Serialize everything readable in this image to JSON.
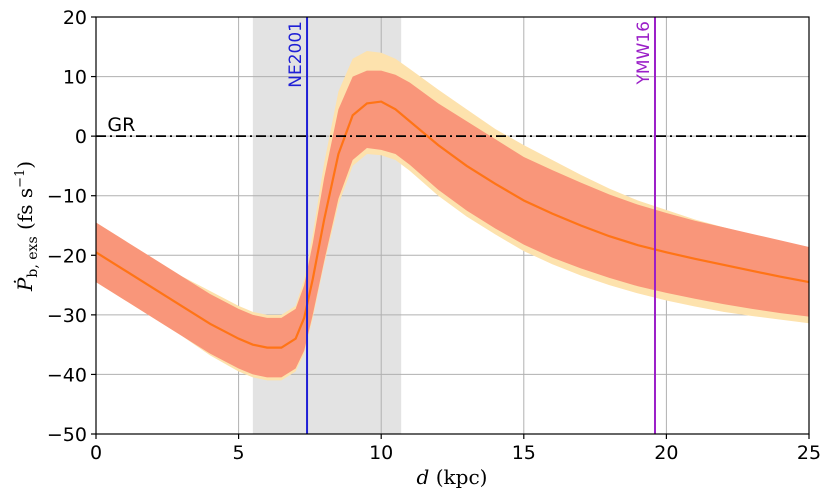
{
  "chart_data": {
    "type": "line",
    "xlabel": "d (kpc)",
    "ylabel": "Ṗb,exs (fs s⁻¹)",
    "xlim": [
      0,
      25
    ],
    "ylim": [
      -50,
      20
    ],
    "xticks": [
      0,
      5,
      10,
      15,
      20,
      25
    ],
    "yticks": [
      -50,
      -40,
      -30,
      -20,
      -10,
      0,
      10,
      20
    ],
    "xtick_labels": [
      "0",
      "5",
      "10",
      "15",
      "20",
      "25"
    ],
    "ytick_labels": [
      "−50",
      "−40",
      "−30",
      "−20",
      "−10",
      "0",
      "10",
      "20"
    ],
    "grid": true,
    "shaded_region": {
      "x": [
        5.5,
        10.7
      ],
      "color": "#e3e3e3"
    },
    "reference_line": {
      "label": "GR",
      "y": 0,
      "style": "dash-dot",
      "color": "#000000"
    },
    "vertical_lines": [
      {
        "label": "NE2001",
        "x": 7.4,
        "color": "#1f1fd6"
      },
      {
        "label": "YMW16",
        "x": 19.6,
        "color": "#9b1fc8"
      }
    ],
    "x": [
      0,
      1,
      2,
      3,
      4,
      5,
      5.5,
      6,
      6.5,
      7,
      7.3,
      7.6,
      8,
      8.5,
      9,
      9.5,
      10,
      10.5,
      11,
      12,
      13,
      14,
      15,
      16,
      17,
      18,
      19,
      20,
      21,
      22,
      23,
      24,
      25
    ],
    "series": [
      {
        "values": [
          -19.5,
          -22.5,
          -25.5,
          -28.5,
          -31.5,
          -34,
          -35,
          -35.5,
          -35.5,
          -34,
          -30.5,
          -24,
          -14,
          -3,
          3.5,
          5.5,
          5.8,
          4.5,
          2.5,
          -1.5,
          -5,
          -8,
          -10.8,
          -13,
          -15,
          -16.8,
          -18.3,
          -19.5,
          -20.6,
          -21.6,
          -22.6,
          -23.6,
          -24.5
        ],
        "band_inner_lower": [
          -24.5,
          -27.5,
          -30.5,
          -33.5,
          -36.5,
          -39,
          -40,
          -40.5,
          -40.5,
          -39,
          -36,
          -30,
          -21,
          -10.5,
          -4,
          -2,
          -2.3,
          -3,
          -4.8,
          -9,
          -12.5,
          -15.5,
          -18.2,
          -20.4,
          -22.2,
          -23.8,
          -25.2,
          -26.3,
          -27.3,
          -28.2,
          -29,
          -29.7,
          -30.3
        ],
        "band_inner_upper": [
          -14.5,
          -17.5,
          -20.5,
          -23.5,
          -26.5,
          -29,
          -30,
          -30.5,
          -30.5,
          -29,
          -25,
          -18,
          -7,
          4.5,
          10,
          11,
          11,
          10.3,
          9,
          5.5,
          2.5,
          -0.5,
          -3.5,
          -5.7,
          -7.8,
          -9.8,
          -11.5,
          -12.9,
          -14.2,
          -15.3,
          -16.4,
          -17.5,
          -18.6
        ],
        "band_outer_lower": [
          -24.5,
          -27.5,
          -30.5,
          -33.5,
          -36.8,
          -39.5,
          -40.5,
          -41,
          -41,
          -39.5,
          -36.5,
          -30.5,
          -21.5,
          -11.5,
          -5,
          -3,
          -3.2,
          -4,
          -5.8,
          -10,
          -13.5,
          -16.5,
          -19.3,
          -21.5,
          -23.4,
          -25,
          -26.4,
          -27.6,
          -28.6,
          -29.5,
          -30.2,
          -30.8,
          -31.4
        ],
        "band_outer_upper": [
          -14.5,
          -17.5,
          -20.5,
          -23.5,
          -26,
          -28.5,
          -29.5,
          -30,
          -30,
          -28.5,
          -24,
          -16.5,
          -4.5,
          7.5,
          13,
          14.3,
          14,
          13,
          11.3,
          7.8,
          4.5,
          1.2,
          -1.5,
          -4,
          -6.5,
          -8.8,
          -10.8,
          -12.4,
          -14,
          -15.3,
          -16.5,
          -17.7,
          -18.7
        ]
      }
    ],
    "colors": {
      "mean_line": "#ff7416",
      "inner_band": "#f9967a",
      "outer_band": "#fde2ad"
    }
  }
}
